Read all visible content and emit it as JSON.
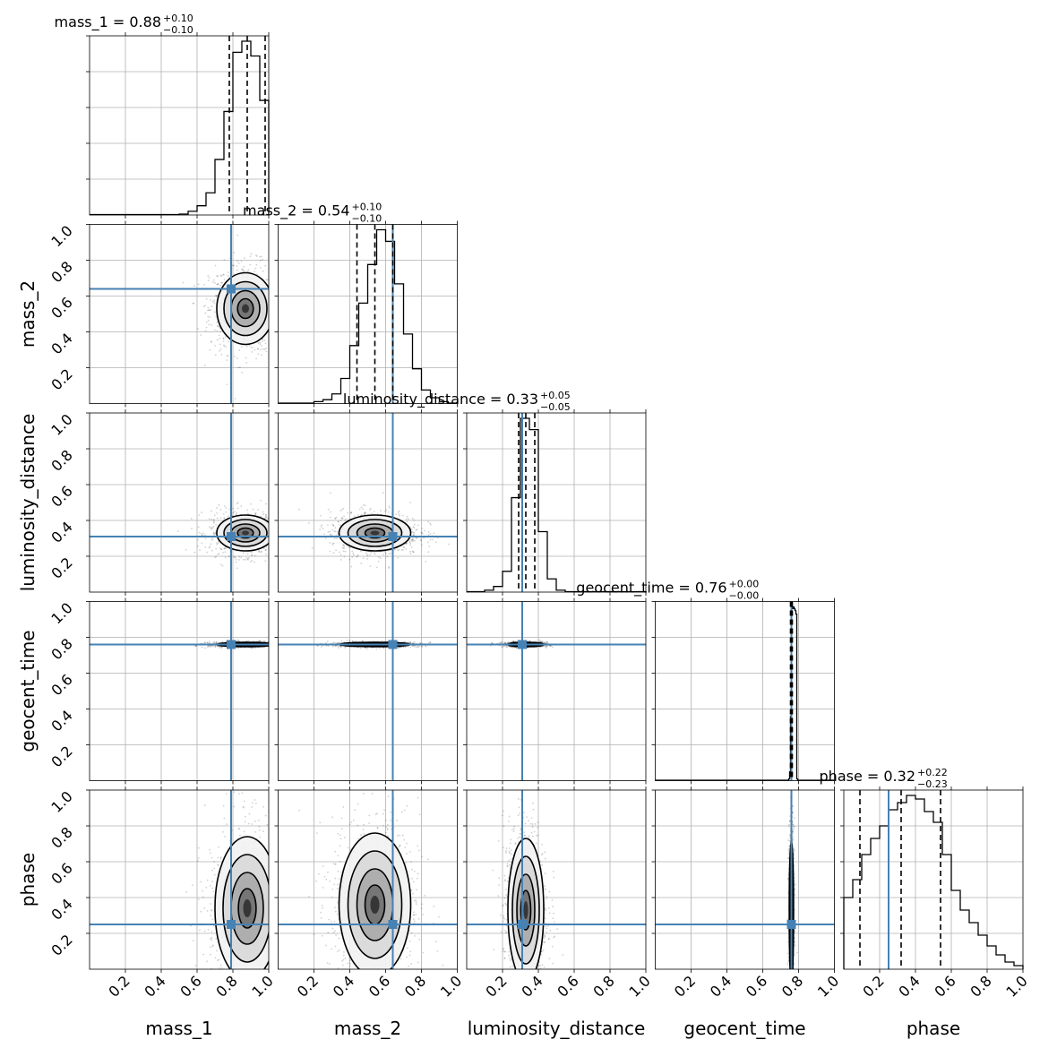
{
  "chart_data": {
    "type": "corner",
    "parameters": [
      "mass_1",
      "mass_2",
      "luminosity_distance",
      "geocent_time",
      "phase"
    ],
    "axis_labels": [
      "mass_1",
      "mass_2",
      "luminosity_distance",
      "geocent_time",
      "phase"
    ],
    "xlim": [
      0,
      1
    ],
    "ylim": [
      0,
      1
    ],
    "tick_labels": [
      "0.2",
      "0.4",
      "0.6",
      "0.8",
      "1.0"
    ],
    "grid": true,
    "truth_color": "#4682b4",
    "truths": [
      0.79,
      0.64,
      0.31,
      0.76,
      0.25
    ],
    "summaries": [
      {
        "name": "mass_1",
        "label": "mass_1 = 0.88",
        "median": 0.88,
        "plus": "+0.10",
        "minus": "−0.10",
        "quantiles": [
          0.78,
          0.88,
          0.98
        ]
      },
      {
        "name": "mass_2",
        "label": "mass_2 = 0.54",
        "median": 0.54,
        "plus": "+0.10",
        "minus": "−0.10",
        "quantiles": [
          0.44,
          0.54,
          0.64
        ]
      },
      {
        "name": "luminosity_distance",
        "label": "luminosity_distance = 0.33",
        "median": 0.33,
        "plus": "+0.05",
        "minus": "−0.05",
        "quantiles": [
          0.29,
          0.33,
          0.38
        ]
      },
      {
        "name": "geocent_time",
        "label": "geocent_time = 0.76",
        "median": 0.76,
        "plus": "+0.00",
        "minus": "−0.00",
        "quantiles": [
          0.755,
          0.76,
          0.765
        ]
      },
      {
        "name": "phase",
        "label": "phase = 0.32",
        "median": 0.32,
        "plus": "+0.22",
        "minus": "−0.23",
        "quantiles": [
          0.09,
          0.32,
          0.54
        ]
      }
    ],
    "marginals": [
      {
        "name": "mass_1",
        "bin_edges": [
          0.5,
          0.55,
          0.6,
          0.65,
          0.7,
          0.75,
          0.8,
          0.85,
          0.9,
          0.95,
          1.0
        ],
        "counts": [
          0.005,
          0.02,
          0.05,
          0.12,
          0.3,
          0.56,
          0.88,
          0.94,
          0.86,
          0.62
        ]
      },
      {
        "name": "mass_2",
        "bin_edges": [
          0.2,
          0.25,
          0.3,
          0.35,
          0.4,
          0.45,
          0.5,
          0.55,
          0.6,
          0.65,
          0.7,
          0.75,
          0.8,
          0.85,
          0.9,
          0.95
        ],
        "counts": [
          0.01,
          0.02,
          0.05,
          0.13,
          0.3,
          0.52,
          0.72,
          0.9,
          0.84,
          0.62,
          0.36,
          0.18,
          0.07,
          0.03,
          0.01
        ]
      },
      {
        "name": "luminosity_distance",
        "bin_edges": [
          0.1,
          0.15,
          0.2,
          0.25,
          0.3,
          0.35,
          0.4,
          0.45,
          0.5,
          0.55
        ],
        "counts": [
          0.01,
          0.03,
          0.11,
          0.5,
          0.92,
          0.86,
          0.32,
          0.07,
          0.01
        ]
      },
      {
        "name": "geocent_time",
        "bin_edges": [
          0.745,
          0.75,
          0.755,
          0.76,
          0.765,
          0.77,
          0.775,
          0.78,
          0.785,
          0.79,
          0.795
        ],
        "counts": [
          0.01,
          0.05,
          0.36,
          0.97,
          0.96,
          0.97,
          0.96,
          0.95,
          0.93,
          0.01
        ]
      },
      {
        "name": "phase",
        "bin_edges": [
          0.0,
          0.05,
          0.1,
          0.15,
          0.2,
          0.25,
          0.3,
          0.35,
          0.4,
          0.45,
          0.5,
          0.55,
          0.6,
          0.65,
          0.7,
          0.75,
          0.8,
          0.85,
          0.9,
          0.95,
          1.0
        ],
        "counts": [
          0.4,
          0.5,
          0.64,
          0.73,
          0.8,
          0.89,
          0.93,
          0.97,
          0.95,
          0.88,
          0.82,
          0.64,
          0.44,
          0.33,
          0.26,
          0.19,
          0.13,
          0.08,
          0.04,
          0.02
        ]
      }
    ],
    "joint_2d": [
      {
        "x": "mass_1",
        "y": "mass_2",
        "center": [
          0.87,
          0.53
        ],
        "spread": [
          0.08,
          0.1
        ]
      },
      {
        "x": "mass_1",
        "y": "luminosity_distance",
        "center": [
          0.87,
          0.33
        ],
        "spread": [
          0.08,
          0.05
        ]
      },
      {
        "x": "mass_2",
        "y": "luminosity_distance",
        "center": [
          0.54,
          0.33
        ],
        "spread": [
          0.1,
          0.05
        ]
      },
      {
        "x": "mass_1",
        "y": "geocent_time",
        "center": [
          0.87,
          0.76
        ],
        "spread": [
          0.08,
          0.006
        ]
      },
      {
        "x": "mass_2",
        "y": "geocent_time",
        "center": [
          0.54,
          0.76
        ],
        "spread": [
          0.1,
          0.006
        ]
      },
      {
        "x": "luminosity_distance",
        "y": "geocent_time",
        "center": [
          0.33,
          0.76
        ],
        "spread": [
          0.05,
          0.006
        ]
      },
      {
        "x": "mass_1",
        "y": "phase",
        "center": [
          0.88,
          0.34
        ],
        "spread": [
          0.09,
          0.2
        ]
      },
      {
        "x": "mass_2",
        "y": "phase",
        "center": [
          0.54,
          0.36
        ],
        "spread": [
          0.1,
          0.2
        ]
      },
      {
        "x": "luminosity_distance",
        "y": "phase",
        "center": [
          0.33,
          0.33
        ],
        "spread": [
          0.05,
          0.2
        ]
      },
      {
        "x": "geocent_time",
        "y": "phase",
        "center": [
          0.76,
          0.32
        ],
        "spread": [
          0.006,
          0.2
        ]
      }
    ]
  }
}
